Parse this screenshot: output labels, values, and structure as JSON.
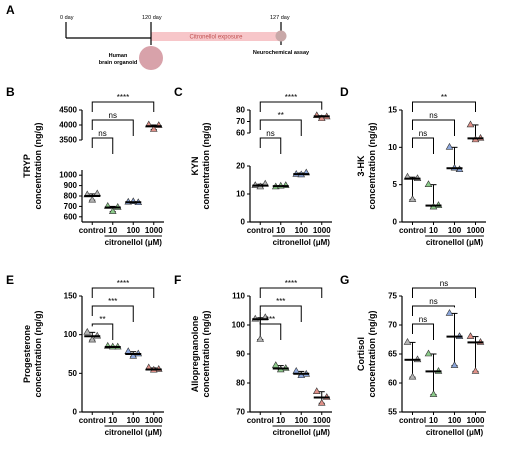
{
  "figure": {
    "colors": {
      "control": "#b4b4b4",
      "c10": "#8ccb8a",
      "c100": "#8ba6dc",
      "c1000": "#e09088",
      "bar_pink": "#f7c6c9",
      "organoid": "#d8a2aa"
    },
    "timeline": {
      "panel": "A",
      "start_label": "0 day",
      "mid_label": "120 day",
      "end_label": "127 day",
      "exposure_label": "Citronellol exposure",
      "organoid_label_1": "Human",
      "organoid_label_2": "brain organoid",
      "assay_label": "Neurochemical assay"
    }
  },
  "chart_data": [
    {
      "panel": "B",
      "type": "scatter",
      "ylabel_1": "TRYP",
      "ylabel_2": "concentration (ng/g)",
      "xlabel": "citronellol (μM)",
      "categories": [
        "control",
        "10",
        "100",
        "1000"
      ],
      "broken_axis": true,
      "ylim_lower": [
        550,
        1050
      ],
      "ylim_upper": [
        3500,
        4500
      ],
      "yticks_lower": [
        "600",
        "700",
        "800",
        "900",
        "1000"
      ],
      "yticks_upper": [
        "3500",
        "4000",
        "4500"
      ],
      "series": [
        {
          "category": "control",
          "values": [
            810,
            820,
            760
          ],
          "mean": 800
        },
        {
          "category": "10",
          "values": [
            700,
            690,
            650
          ],
          "mean": 690
        },
        {
          "category": "100",
          "values": [
            740,
            735,
            745
          ],
          "mean": 740
        },
        {
          "category": "1000",
          "values": [
            4000,
            3980,
            3850
          ],
          "mean": 3960
        }
      ],
      "comparisons": [
        {
          "from": "control",
          "to": "10",
          "label": "ns"
        },
        {
          "from": "control",
          "to": "100",
          "label": "ns"
        },
        {
          "from": "control",
          "to": "1000",
          "label": "****"
        }
      ]
    },
    {
      "panel": "C",
      "type": "scatter",
      "ylabel_1": "KYN",
      "ylabel_2": "concentration (ng/g)",
      "xlabel": "citronellol (μM)",
      "categories": [
        "control",
        "10",
        "100",
        "1000"
      ],
      "broken_axis": true,
      "ylim_lower": [
        0,
        20
      ],
      "ylim_upper": [
        60,
        80
      ],
      "yticks_lower": [
        "0",
        "10",
        "20"
      ],
      "yticks_upper": [
        "60",
        "70",
        "80"
      ],
      "series": [
        {
          "category": "control",
          "values": [
            13,
            13.5,
            12.5
          ],
          "mean": 13
        },
        {
          "category": "10",
          "values": [
            12.5,
            13,
            12.8
          ],
          "mean": 12.8
        },
        {
          "category": "100",
          "values": [
            17,
            17.5,
            16.8
          ],
          "mean": 17.1
        },
        {
          "category": "1000",
          "values": [
            75,
            74,
            72.5
          ],
          "mean": 74.5
        }
      ],
      "comparisons": [
        {
          "from": "control",
          "to": "10",
          "label": "ns"
        },
        {
          "from": "control",
          "to": "100",
          "label": "**"
        },
        {
          "from": "control",
          "to": "1000",
          "label": "****"
        }
      ]
    },
    {
      "panel": "D",
      "type": "scatter",
      "ylabel_1": "3-HK",
      "ylabel_2": "concentration (ng/g)",
      "xlabel": "citronellol (μM)",
      "categories": [
        "control",
        "10",
        "100",
        "1000"
      ],
      "ylim": [
        0,
        15
      ],
      "yticks": [
        "0",
        "5",
        "10",
        "15"
      ],
      "series": [
        {
          "category": "control",
          "values": [
            6,
            5.8,
            3
          ],
          "mean": 5.8
        },
        {
          "category": "10",
          "values": [
            5,
            2.2,
            2
          ],
          "mean": 2.2
        },
        {
          "category": "100",
          "values": [
            10,
            7,
            7.2
          ],
          "mean": 7.2
        },
        {
          "category": "1000",
          "values": [
            13,
            11.2,
            11
          ],
          "mean": 11.2
        }
      ],
      "comparisons": [
        {
          "from": "control",
          "to": "10",
          "label": "ns"
        },
        {
          "from": "control",
          "to": "100",
          "label": "ns"
        },
        {
          "from": "control",
          "to": "1000",
          "label": "**"
        }
      ]
    },
    {
      "panel": "E",
      "type": "scatter",
      "ylabel_1": "Progesterone",
      "ylabel_2": "concentration (ng/g)",
      "xlabel": "citronellol (μM)",
      "categories": [
        "control",
        "10",
        "100",
        "1000"
      ],
      "ylim": [
        0,
        150
      ],
      "yticks": [
        "0",
        "50",
        "100",
        "150"
      ],
      "series": [
        {
          "category": "control",
          "values": [
            103,
            98,
            93
          ],
          "mean": 98
        },
        {
          "category": "10",
          "values": [
            85,
            84,
            84
          ],
          "mean": 84
        },
        {
          "category": "100",
          "values": [
            78,
            75,
            72
          ],
          "mean": 75
        },
        {
          "category": "1000",
          "values": [
            57,
            55,
            54
          ],
          "mean": 55
        }
      ],
      "comparisons": [
        {
          "from": "control",
          "to": "10",
          "label": "**"
        },
        {
          "from": "control",
          "to": "100",
          "label": "***"
        },
        {
          "from": "control",
          "to": "1000",
          "label": "****"
        }
      ]
    },
    {
      "panel": "F",
      "type": "scatter",
      "ylabel_1": "Allopregnanolone",
      "ylabel_2": "concentration (ng/g)",
      "xlabel": "citronellol (μM)",
      "categories": [
        "control",
        "10",
        "100",
        "1000"
      ],
      "ylim": [
        70,
        110
      ],
      "yticks": [
        "70",
        "80",
        "90",
        "100",
        "110"
      ],
      "series": [
        {
          "category": "control",
          "values": [
            102,
            102.5,
            95
          ],
          "mean": 102
        },
        {
          "category": "10",
          "values": [
            86,
            85,
            84.5
          ],
          "mean": 85
        },
        {
          "category": "100",
          "values": [
            84,
            83,
            82.5
          ],
          "mean": 83.2
        },
        {
          "category": "1000",
          "values": [
            77,
            75,
            73
          ],
          "mean": 75
        }
      ],
      "comparisons": [
        {
          "from": "control",
          "to": "10",
          "label": "***"
        },
        {
          "from": "control",
          "to": "100",
          "label": "***"
        },
        {
          "from": "control",
          "to": "1000",
          "label": "****"
        }
      ]
    },
    {
      "panel": "G",
      "type": "scatter",
      "ylabel_1": "Cortisol",
      "ylabel_2": "concentration (ng/g)",
      "xlabel": "citronellol (μM)",
      "categories": [
        "control",
        "10",
        "100",
        "1000"
      ],
      "ylim": [
        55,
        75
      ],
      "yticks": [
        "55",
        "60",
        "65",
        "70",
        "75"
      ],
      "series": [
        {
          "category": "control",
          "values": [
            67,
            64,
            61
          ],
          "mean": 64
        },
        {
          "category": "10",
          "values": [
            65,
            62,
            58
          ],
          "mean": 62
        },
        {
          "category": "100",
          "values": [
            72,
            68,
            63
          ],
          "mean": 68
        },
        {
          "category": "1000",
          "values": [
            68,
            67,
            62
          ],
          "mean": 67
        }
      ],
      "comparisons": [
        {
          "from": "control",
          "to": "10",
          "label": "ns"
        },
        {
          "from": "control",
          "to": "100",
          "label": "ns"
        },
        {
          "from": "control",
          "to": "1000",
          "label": "ns"
        }
      ]
    }
  ]
}
